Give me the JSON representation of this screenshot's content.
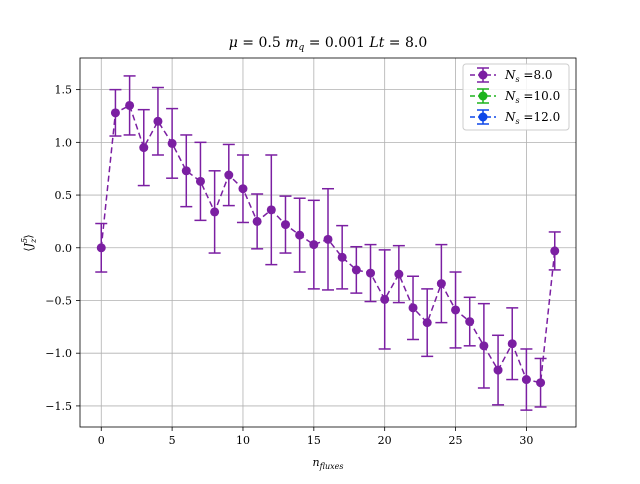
{
  "chart_data": {
    "type": "line",
    "title": "μ = 0.5 m_q = 0.001 Lt = 8.0",
    "title_parts": {
      "mu_sym": "μ",
      "mu_val": " = 0.5 ",
      "mq_sym": "m",
      "mq_sub": "q",
      "mq_val": " = 0.001 ",
      "lt_sym": "Lt",
      "lt_val": " = 8.0"
    },
    "xlabel": "n_fluxes",
    "xlabel_parts": {
      "base": "n",
      "sub": "fluxes"
    },
    "ylabel": "⟨J_z^5⟩",
    "ylabel_parts": {
      "open": "⟨",
      "base": "J",
      "sub": "z",
      "sup": "5",
      "close": "⟩"
    },
    "xlim": [
      -1.5,
      33.5
    ],
    "ylim": [
      -1.7,
      1.8
    ],
    "xticks": [
      0,
      5,
      10,
      15,
      20,
      25,
      30
    ],
    "xtick_labels": [
      "0",
      "5",
      "10",
      "15",
      "20",
      "25",
      "30"
    ],
    "yticks": [
      -1.5,
      -1.0,
      -0.5,
      0.0,
      0.5,
      1.0,
      1.5
    ],
    "ytick_labels": [
      "−1.5",
      "−1.0",
      "−0.5",
      "0.0",
      "0.5",
      "1.0",
      "1.5"
    ],
    "grid": true,
    "legend_position": "top-right",
    "series": [
      {
        "name": "N_s =8.0",
        "legend_parts": {
          "sym": "N",
          "sub": "s",
          "val": " =8.0"
        },
        "color": "#7b1fa2",
        "x": [
          0,
          1,
          2,
          3,
          4,
          5,
          6,
          7,
          8,
          9,
          10,
          11,
          12,
          13,
          14,
          15,
          16,
          17,
          18,
          19,
          20,
          21,
          22,
          23,
          24,
          25,
          26,
          27,
          28,
          29,
          30,
          31,
          32
        ],
        "y": [
          0.0,
          1.28,
          1.35,
          0.95,
          1.2,
          0.99,
          0.73,
          0.63,
          0.34,
          0.69,
          0.56,
          0.25,
          0.36,
          0.22,
          0.12,
          0.03,
          0.08,
          -0.09,
          -0.21,
          -0.24,
          -0.49,
          -0.25,
          -0.57,
          -0.71,
          -0.34,
          -0.59,
          -0.7,
          -0.93,
          -1.16,
          -0.91,
          -1.25,
          -1.28,
          -0.03
        ],
        "err": [
          0.23,
          0.22,
          0.28,
          0.36,
          0.32,
          0.33,
          0.34,
          0.37,
          0.39,
          0.29,
          0.32,
          0.26,
          0.52,
          0.27,
          0.35,
          0.42,
          0.48,
          0.3,
          0.22,
          0.27,
          0.47,
          0.27,
          0.3,
          0.32,
          0.37,
          0.36,
          0.23,
          0.4,
          0.33,
          0.34,
          0.29,
          0.23,
          0.18
        ]
      },
      {
        "name": "N_s =10.0",
        "legend_parts": {
          "sym": "N",
          "sub": "s",
          "val": " =10.0"
        },
        "color": "#1db31d",
        "x": [],
        "y": [],
        "err": []
      },
      {
        "name": "N_s =12.0",
        "legend_parts": {
          "sym": "N",
          "sub": "s",
          "val": " =12.0"
        },
        "color": "#0d47e8",
        "x": [],
        "y": [],
        "err": []
      }
    ]
  }
}
